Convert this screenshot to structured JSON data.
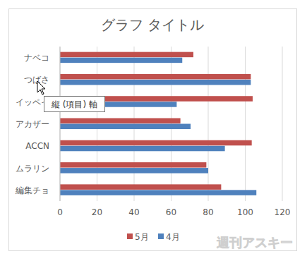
{
  "chart_data": {
    "type": "bar",
    "orientation": "horizontal",
    "title": "グラフ タイトル",
    "categories": [
      "ナベコ",
      "つばさ",
      "イッペイ",
      "アカザー",
      "ACCN",
      "ムラリン",
      "編集チョ"
    ],
    "series": [
      {
        "name": "5月",
        "color": "#c0504d",
        "values": [
          72,
          103,
          104,
          65,
          103.5,
          79,
          87
        ]
      },
      {
        "name": "4月",
        "color": "#4f81bd",
        "values": [
          66,
          103,
          63,
          70.5,
          89,
          80,
          106
        ]
      }
    ],
    "xlim": [
      0,
      120
    ],
    "xticks": [
      0,
      20,
      40,
      60,
      80,
      100,
      120
    ],
    "grid": true,
    "legend": "bottom",
    "annotations": [
      "縦 (項目) 軸",
      "週刊アスキー"
    ]
  }
}
